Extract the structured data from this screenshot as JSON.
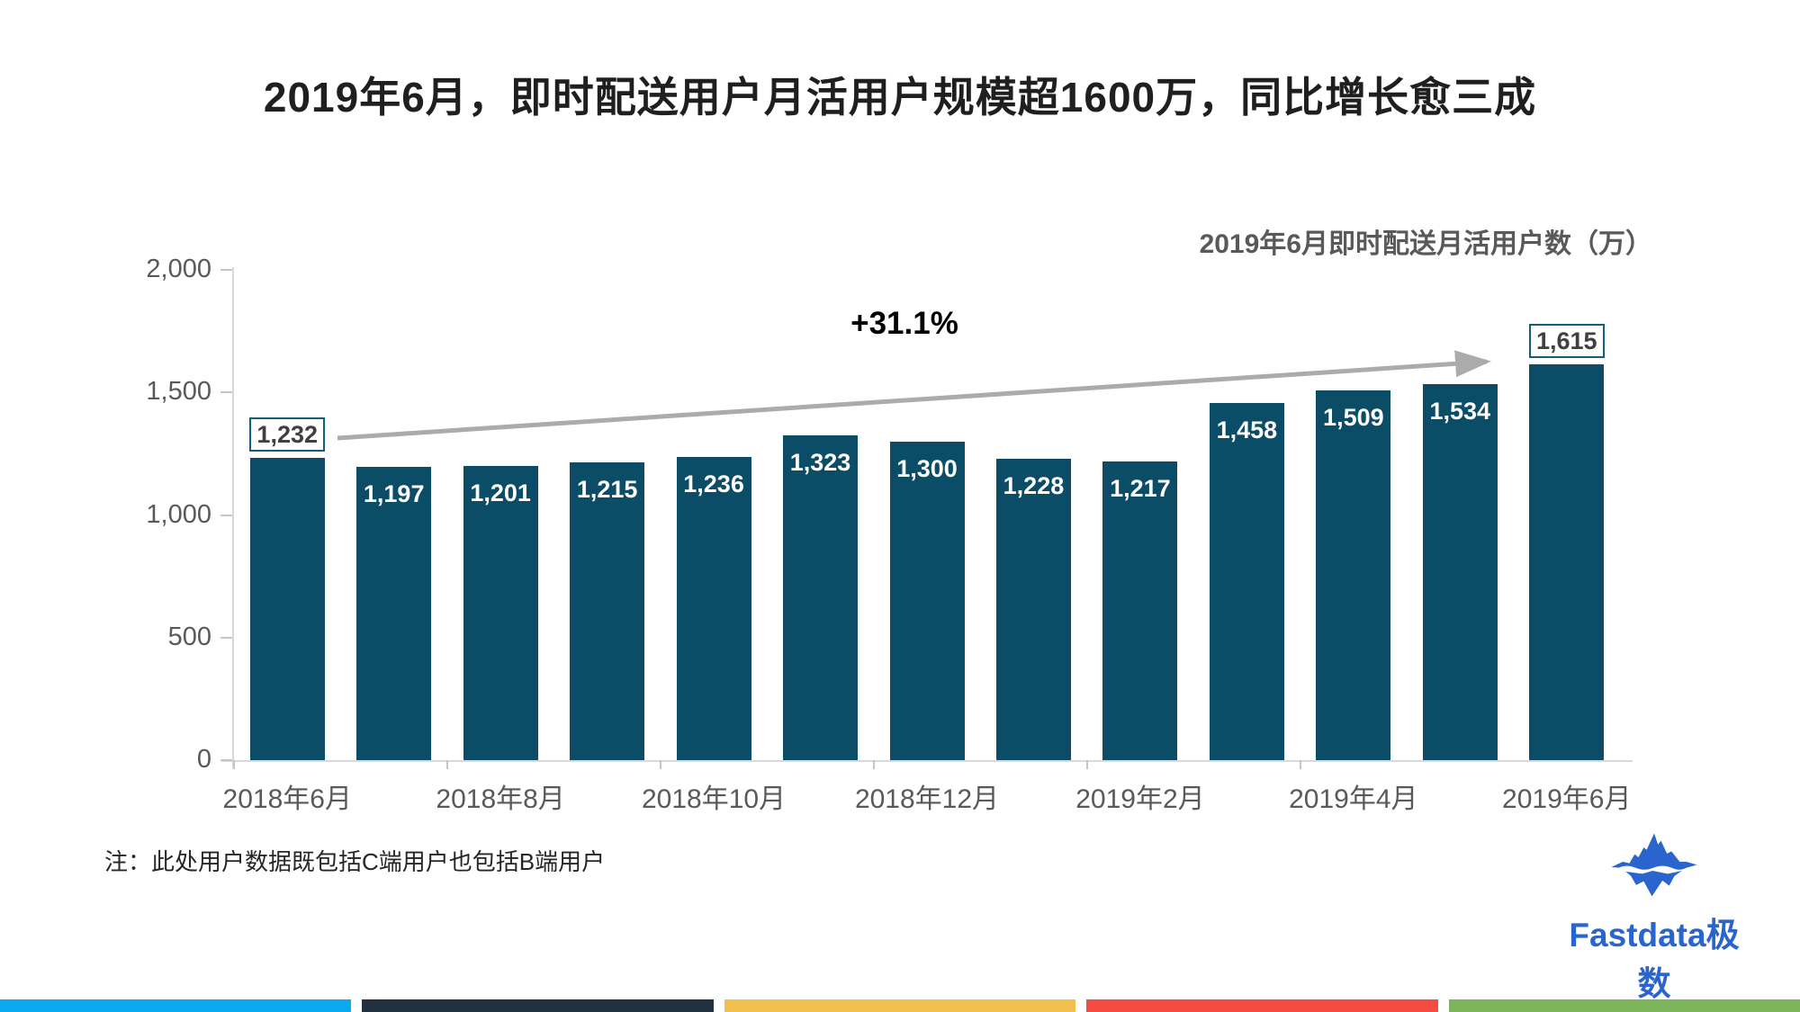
{
  "title": "2019年6月，即时配送用户月活用户规模超1600万，同比增长愈三成",
  "note": "注：此处用户数据既包括C端用户也包括B端用户",
  "logo": {
    "name": "Fastdata极数",
    "color": "#2a64cd",
    "icon": "iceberg-icon"
  },
  "footer_stripe_colors": [
    "#0aabee",
    "#223140",
    "#f2c04e",
    "#f54b40",
    "#7cb45b"
  ],
  "chart_data": {
    "type": "bar",
    "title": "2019年6月即时配送月活用户数（万）",
    "unit": "万",
    "values": [
      1232,
      1197,
      1201,
      1215,
      1236,
      1323,
      1300,
      1228,
      1217,
      1458,
      1509,
      1534,
      1615
    ],
    "bar_labels": [
      "1,232",
      "1,197",
      "1,201",
      "1,215",
      "1,236",
      "1,323",
      "1,300",
      "1,228",
      "1,217",
      "1,458",
      "1,509",
      "1,534",
      "1,615"
    ],
    "boxed_label_indexes": [
      0,
      12
    ],
    "x_tick_labels": [
      "2018年6月",
      "2018年8月",
      "2018年10月",
      "2018年12月",
      "2019年2月",
      "2019年4月",
      "2019年6月"
    ],
    "x_tick_every": 2,
    "y_tick_labels": [
      "0",
      "500",
      "1,000",
      "1,500",
      "2,000"
    ],
    "ylim": [
      0,
      2000
    ],
    "grid": false,
    "legend": false,
    "annotation": "+31.1%",
    "colors": {
      "bar": "#0b4c66",
      "bar_label": "#ffffff",
      "callout_text": "#404040",
      "callout_border": "#155d7d",
      "arrow": "#ababab",
      "axis": "#d9d9d9",
      "axis_text": "#595959"
    }
  }
}
